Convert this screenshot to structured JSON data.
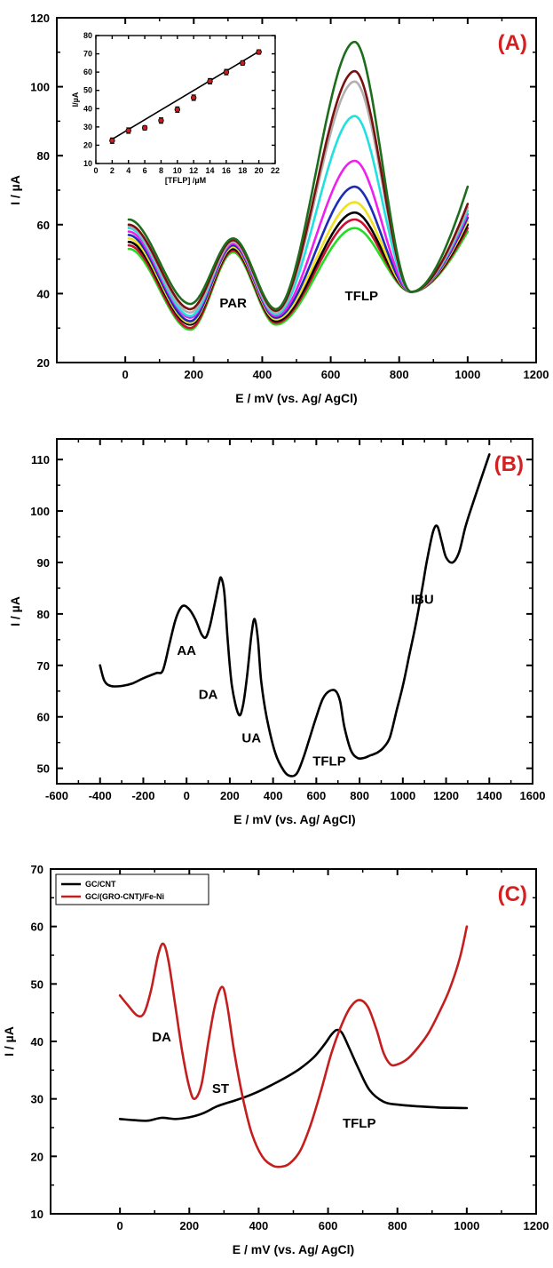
{
  "chart_data": [
    {
      "panel": "(A)",
      "type": "line",
      "title": "",
      "xlabel": "E / mV (vs. Ag/ AgCl)",
      "ylabel": "I / µA",
      "xlim": [
        -200,
        1200
      ],
      "ylim": [
        20,
        120
      ],
      "xticks": [
        0,
        200,
        400,
        600,
        800,
        1000,
        1200
      ],
      "yticks": [
        20,
        40,
        60,
        80,
        100,
        120
      ],
      "grid": false,
      "label_color": "#d42020",
      "annotations": [
        {
          "text": "PAR",
          "x": 315,
          "y": 36
        },
        {
          "text": "TFLP",
          "x": 690,
          "y": 38
        }
      ],
      "series": [
        {
          "color": "#22dd22",
          "start": 53,
          "min1": 29.5,
          "peak1": 52,
          "min2": 31,
          "peak2": 59,
          "end": 58
        },
        {
          "color": "#c8102e",
          "start": 54,
          "min1": 30,
          "peak1": 52.5,
          "min2": 31.5,
          "peak2": 61.5,
          "end": 59
        },
        {
          "color": "#000000",
          "start": 55,
          "min1": 31,
          "peak1": 53,
          "min2": 32,
          "peak2": 63.5,
          "end": 60
        },
        {
          "color": "#f0e020",
          "start": 56,
          "min1": 31.5,
          "peak1": 53.5,
          "min2": 32.5,
          "peak2": 66.5,
          "end": 61
        },
        {
          "color": "#1a2cb8",
          "start": 57,
          "min1": 32,
          "peak1": 54,
          "min2": 33,
          "peak2": 71,
          "end": 62
        },
        {
          "color": "#ee20ee",
          "start": 58,
          "min1": 33,
          "peak1": 54.5,
          "min2": 33.5,
          "peak2": 78.5,
          "end": 63
        },
        {
          "color": "#20e0e0",
          "start": 59,
          "min1": 33.5,
          "peak1": 55,
          "min2": 34,
          "peak2": 91.5,
          "end": 64
        },
        {
          "color": "#b0b0b0",
          "start": 59.5,
          "min1": 34.5,
          "peak1": 55,
          "min2": 34.5,
          "peak2": 101.5,
          "end": 65
        },
        {
          "color": "#7a1010",
          "start": 60,
          "min1": 35.5,
          "peak1": 55.5,
          "min2": 35,
          "peak2": 104.5,
          "end": 66
        },
        {
          "color": "#1c6e1c",
          "start": 61.5,
          "min1": 37,
          "peak1": 56,
          "min2": 35.5,
          "peak2": 113,
          "end": 71
        }
      ],
      "inset": {
        "xlabel": "[TFLP] /µM",
        "ylabel": "I/µA",
        "xlim": [
          0,
          22
        ],
        "ylim": [
          10,
          80
        ],
        "xticks": [
          0,
          2,
          4,
          6,
          8,
          10,
          12,
          14,
          16,
          18,
          20,
          22
        ],
        "yticks": [
          10,
          20,
          30,
          40,
          50,
          60,
          70,
          80
        ],
        "x": [
          2,
          4,
          6,
          8,
          10,
          12,
          14,
          16,
          18,
          20
        ],
        "y": [
          22.5,
          28,
          29.5,
          33.5,
          39.5,
          46,
          55,
          60,
          65,
          71
        ],
        "err": [
          1.5,
          1.5,
          1.2,
          1.5,
          1.5,
          1.5,
          1.5,
          1.5,
          1.2,
          1.2
        ],
        "fit": [
          [
            2,
            23.3
          ],
          [
            20,
            71.3
          ]
        ]
      }
    },
    {
      "panel": "(B)",
      "type": "line",
      "title": "",
      "xlabel": "E / mV (vs. Ag/ AgCl)",
      "ylabel": "I / µA",
      "xlim": [
        -600,
        1600
      ],
      "ylim": [
        47,
        114
      ],
      "xticks": [
        -600,
        -400,
        -200,
        0,
        200,
        400,
        600,
        800,
        1000,
        1200,
        1400,
        1600
      ],
      "yticks": [
        50,
        60,
        70,
        80,
        90,
        100,
        110
      ],
      "grid": false,
      "label_color": "#d42020",
      "annotations": [
        {
          "text": "AA",
          "x": 0,
          "y": 72
        },
        {
          "text": "DA",
          "x": 100,
          "y": 63.5
        },
        {
          "text": "UA",
          "x": 300,
          "y": 55
        },
        {
          "text": "TFLP",
          "x": 660,
          "y": 50.5
        },
        {
          "text": "IBU",
          "x": 1090,
          "y": 82
        }
      ],
      "series": [
        {
          "color": "#000000",
          "points": [
            [
              -400,
              70
            ],
            [
              -380,
              67
            ],
            [
              -350,
              66
            ],
            [
              -300,
              66
            ],
            [
              -250,
              66.5
            ],
            [
              -200,
              67.5
            ],
            [
              -140,
              68.5
            ],
            [
              -110,
              69
            ],
            [
              -80,
              74
            ],
            [
              -50,
              79
            ],
            [
              -20,
              81.5
            ],
            [
              10,
              81
            ],
            [
              40,
              79
            ],
            [
              70,
              76
            ],
            [
              90,
              75.5
            ],
            [
              110,
              78
            ],
            [
              130,
              82
            ],
            [
              150,
              86
            ],
            [
              160,
              87
            ],
            [
              175,
              84
            ],
            [
              190,
              75
            ],
            [
              210,
              66
            ],
            [
              240,
              60.5
            ],
            [
              260,
              62
            ],
            [
              280,
              68
            ],
            [
              300,
              76
            ],
            [
              315,
              79
            ],
            [
              330,
              75
            ],
            [
              345,
              67
            ],
            [
              370,
              60
            ],
            [
              410,
              53
            ],
            [
              450,
              49.5
            ],
            [
              480,
              48.5
            ],
            [
              510,
              49
            ],
            [
              540,
              52
            ],
            [
              570,
              56
            ],
            [
              600,
              60
            ],
            [
              630,
              63.5
            ],
            [
              660,
              65
            ],
            [
              690,
              65
            ],
            [
              710,
              63
            ],
            [
              730,
              58
            ],
            [
              760,
              53.5
            ],
            [
              790,
              52
            ],
            [
              820,
              52
            ],
            [
              850,
              52.5
            ],
            [
              880,
              53
            ],
            [
              910,
              54
            ],
            [
              940,
              56
            ],
            [
              970,
              61
            ],
            [
              1000,
              66
            ],
            [
              1030,
              72
            ],
            [
              1060,
              78
            ],
            [
              1090,
              85
            ],
            [
              1110,
              90
            ],
            [
              1140,
              96
            ],
            [
              1160,
              97
            ],
            [
              1180,
              94
            ],
            [
              1200,
              91
            ],
            [
              1230,
              90
            ],
            [
              1260,
              92
            ],
            [
              1290,
              97
            ],
            [
              1320,
              101
            ],
            [
              1360,
              106
            ],
            [
              1400,
              111
            ]
          ]
        }
      ]
    },
    {
      "panel": "(C)",
      "type": "line",
      "title": "",
      "xlabel": "E / mV (vs. Ag/ AgCl)",
      "ylabel": "I / µA",
      "xlim": [
        -200,
        1200
      ],
      "ylim": [
        10,
        70
      ],
      "xticks": [
        0,
        200,
        400,
        600,
        800,
        1000,
        1200
      ],
      "yticks": [
        10,
        20,
        30,
        40,
        50,
        60,
        70
      ],
      "grid": false,
      "label_color": "#d42020",
      "legend": "top-left",
      "annotations": [
        {
          "text": "DA",
          "x": 120,
          "y": 40
        },
        {
          "text": "ST",
          "x": 290,
          "y": 31
        },
        {
          "text": "TFLP",
          "x": 690,
          "y": 25
        }
      ],
      "series": [
        {
          "name": "GC/CNT",
          "color": "#000000",
          "points": [
            [
              0,
              26.5
            ],
            [
              40,
              26.3
            ],
            [
              80,
              26.2
            ],
            [
              120,
              26.7
            ],
            [
              160,
              26.5
            ],
            [
              200,
              26.8
            ],
            [
              240,
              27.5
            ],
            [
              280,
              28.7
            ],
            [
              320,
              29.5
            ],
            [
              360,
              30.3
            ],
            [
              400,
              31.3
            ],
            [
              440,
              32.5
            ],
            [
              480,
              33.8
            ],
            [
              520,
              35.3
            ],
            [
              560,
              37.3
            ],
            [
              590,
              39.5
            ],
            [
              610,
              41.2
            ],
            [
              625,
              42
            ],
            [
              640,
              41.5
            ],
            [
              660,
              39
            ],
            [
              690,
              35
            ],
            [
              720,
              31.5
            ],
            [
              760,
              29.5
            ],
            [
              800,
              29
            ],
            [
              860,
              28.7
            ],
            [
              920,
              28.5
            ],
            [
              1000,
              28.4
            ]
          ]
        },
        {
          "name": "GC/(GRO-CNT)/Fe-Ni",
          "color": "#c41e1e",
          "points": [
            [
              0,
              48
            ],
            [
              20,
              46.5
            ],
            [
              50,
              44.5
            ],
            [
              70,
              45
            ],
            [
              90,
              49
            ],
            [
              110,
              55
            ],
            [
              125,
              57
            ],
            [
              140,
              54
            ],
            [
              160,
              46
            ],
            [
              180,
              38
            ],
            [
              200,
              32
            ],
            [
              215,
              30
            ],
            [
              235,
              32.5
            ],
            [
              255,
              40
            ],
            [
              275,
              46.5
            ],
            [
              295,
              49.5
            ],
            [
              310,
              46
            ],
            [
              330,
              38
            ],
            [
              355,
              30
            ],
            [
              380,
              24
            ],
            [
              410,
              20
            ],
            [
              440,
              18.4
            ],
            [
              465,
              18.2
            ],
            [
              490,
              18.8
            ],
            [
              520,
              21
            ],
            [
              550,
              25.5
            ],
            [
              580,
              31.5
            ],
            [
              610,
              38
            ],
            [
              640,
              43
            ],
            [
              665,
              46
            ],
            [
              690,
              47.2
            ],
            [
              715,
              46
            ],
            [
              740,
              42
            ],
            [
              760,
              38
            ],
            [
              780,
              36
            ],
            [
              800,
              36
            ],
            [
              830,
              37
            ],
            [
              860,
              39
            ],
            [
              890,
              41.5
            ],
            [
              920,
              45
            ],
            [
              950,
              49
            ],
            [
              980,
              54.5
            ],
            [
              1000,
              60
            ]
          ]
        }
      ]
    }
  ]
}
